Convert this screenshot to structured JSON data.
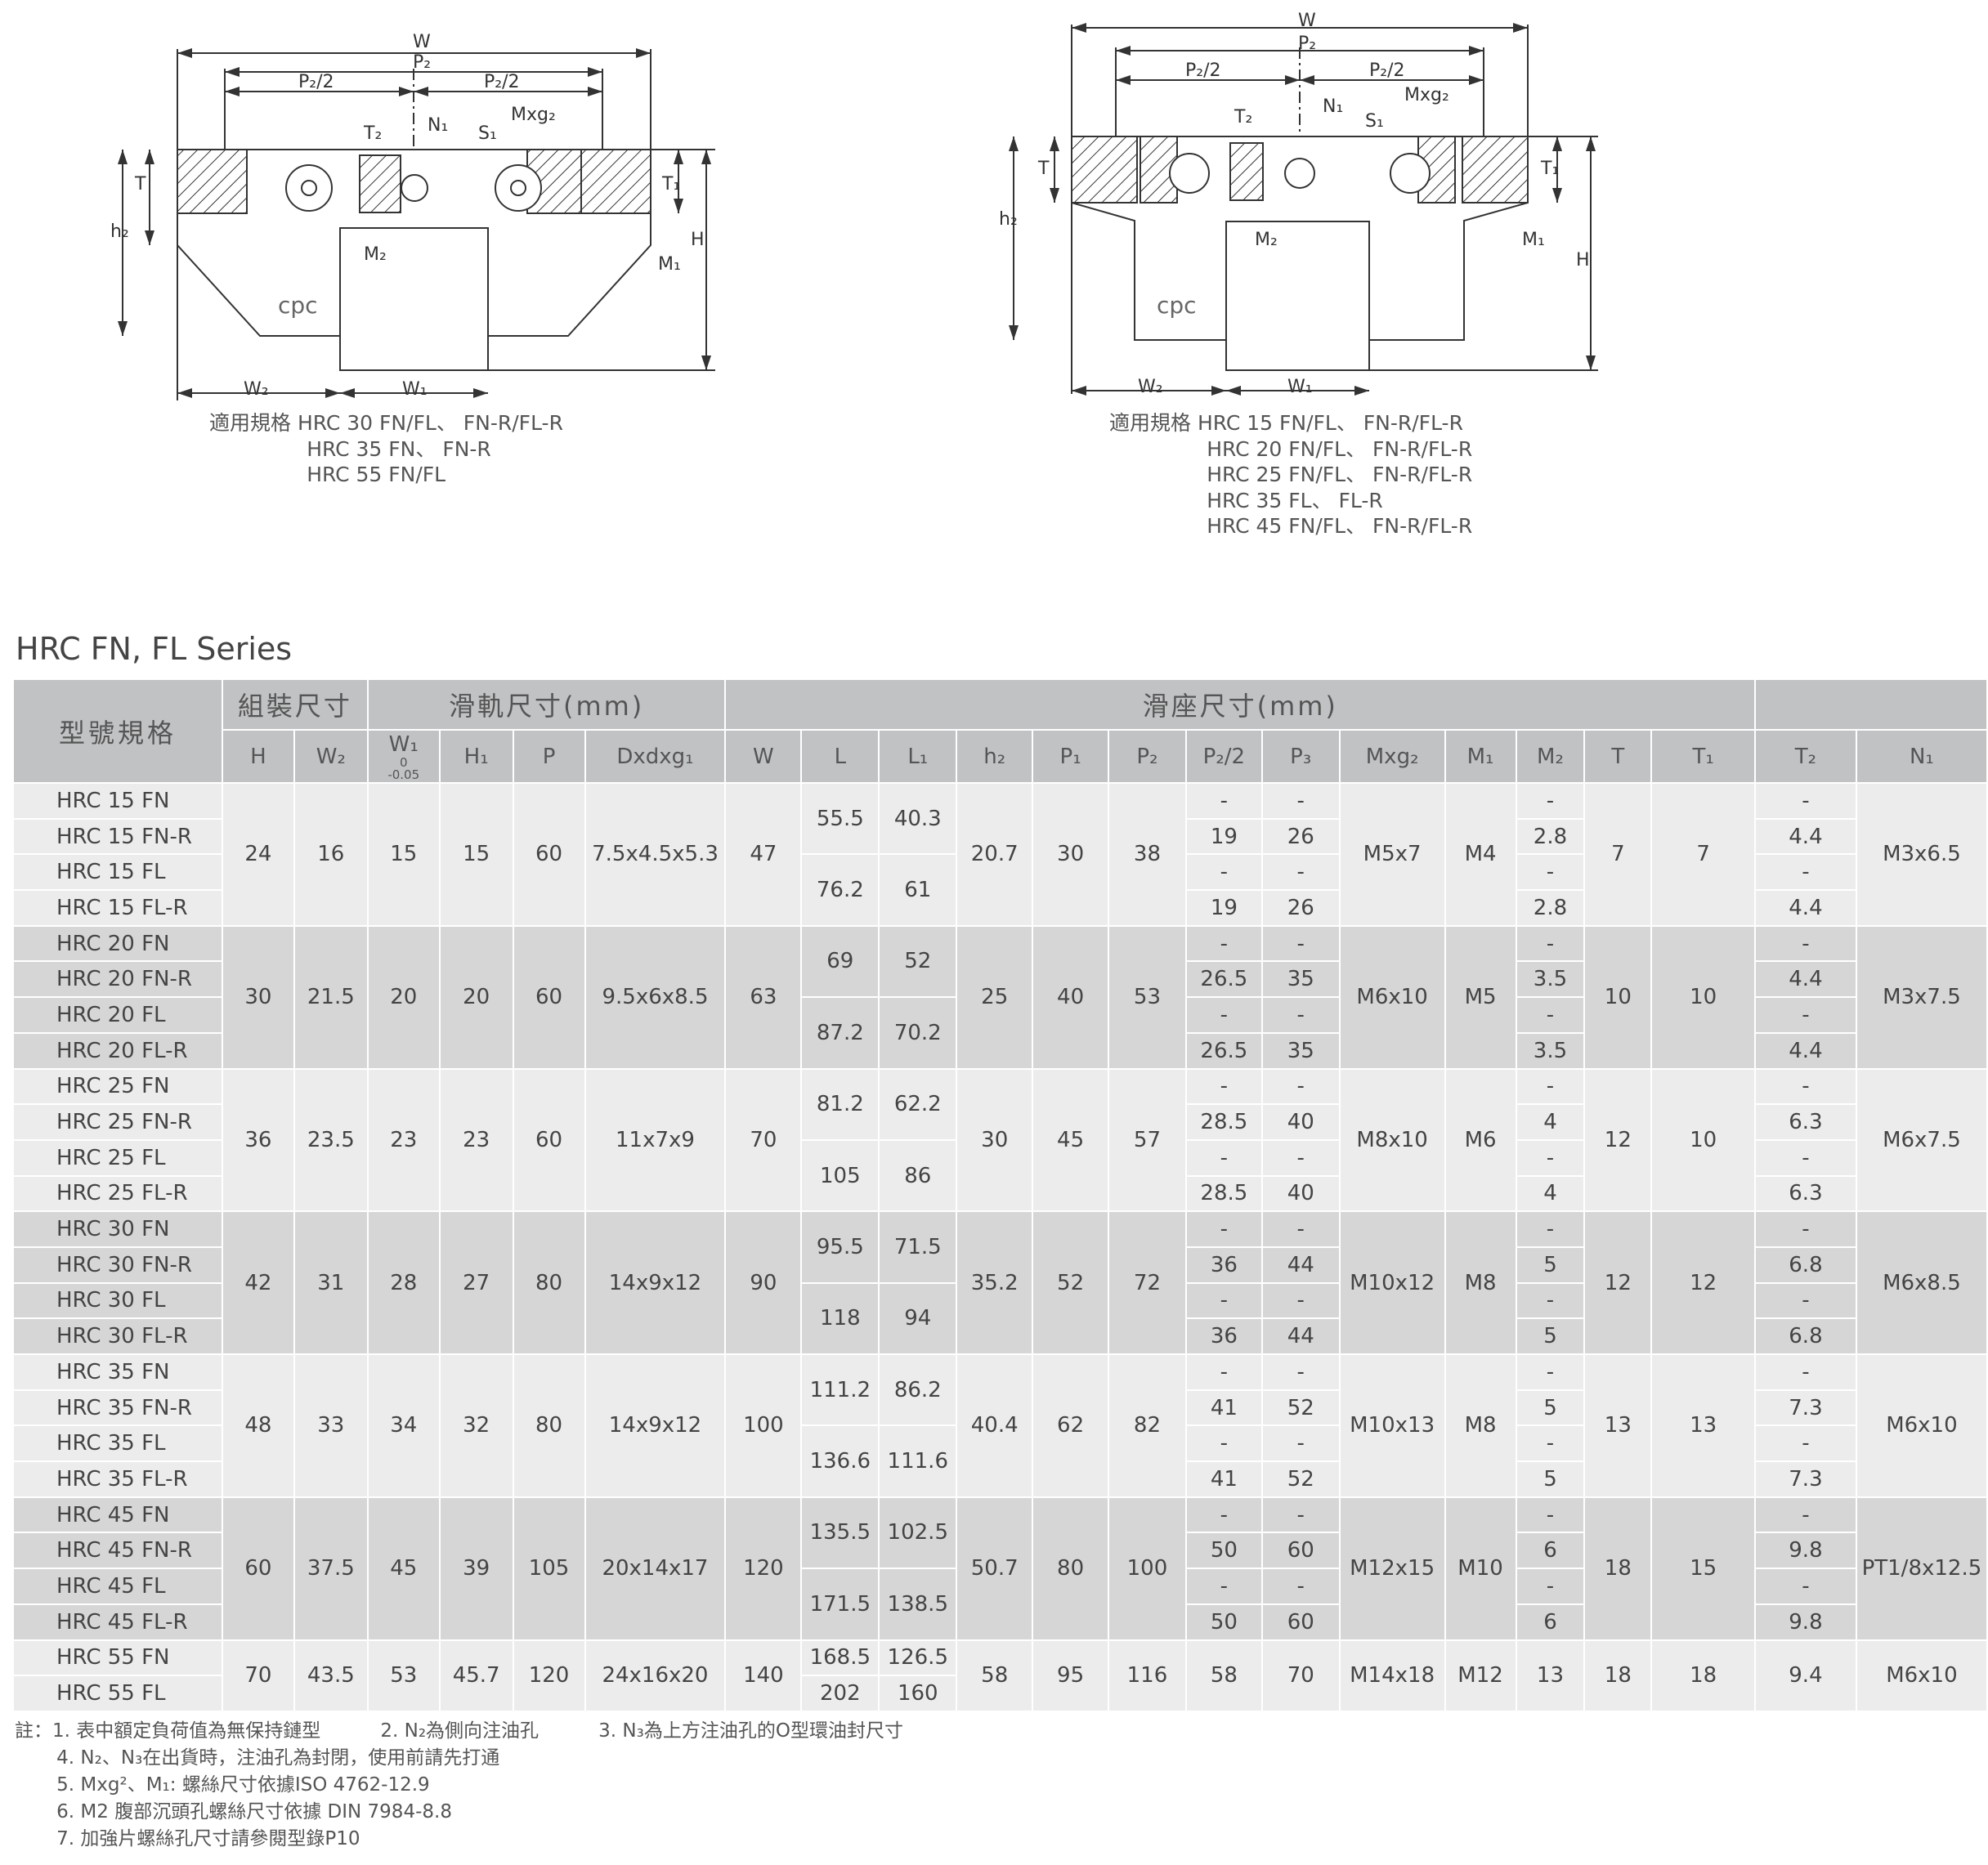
{
  "drawing_left": {
    "labels": {
      "W": "W",
      "P2": "P₂",
      "P2_half_l": "P₂/2",
      "P2_half_r": "P₂/2",
      "T2": "T₂",
      "N1": "N₁",
      "S1": "S₁",
      "Mxg2": "Mxg₂",
      "T": "T",
      "T1": "T₁",
      "h2": "h₂",
      "H": "H",
      "M2": "M₂",
      "M1": "M₁",
      "W2": "W₂",
      "W1": "W₁"
    },
    "logo": "cpc",
    "caption": "適用規格 HRC 30 FN/FL、 FN-R/FL-R\n               HRC 35 FN、 FN-R\n               HRC 55 FN/FL"
  },
  "drawing_right": {
    "labels": {
      "W": "W",
      "P2": "P₂",
      "P2_half_l": "P₂/2",
      "P2_half_r": "P₂/2",
      "T2": "T₂",
      "N1": "N₁",
      "S1": "S₁",
      "Mxg2": "Mxg₂",
      "T": "T",
      "T1": "T₁",
      "h2": "h₂",
      "H": "H",
      "M2": "M₂",
      "M1": "M₁",
      "W2": "W₂",
      "W1": "W₁"
    },
    "logo": "cpc",
    "caption": "適用規格 HRC 15 FN/FL、 FN-R/FL-R\n               HRC 20 FN/FL、 FN-R/FL-R\n               HRC 25 FN/FL、 FN-R/FL-R\n               HRC 35 FL、 FL-R\n               HRC 45 FN/FL、 FN-R/FL-R"
  },
  "series_title": "HRC FN, FL Series",
  "table": {
    "header_groups": {
      "model": "型號規格",
      "assembly": "組裝尺寸",
      "rail": "滑軌尺寸(mm)",
      "block": "滑座尺寸(mm)"
    },
    "columns": [
      "H",
      "W₂",
      "W₁",
      "H₁",
      "P",
      "Dxdxg₁",
      "W",
      "L",
      "L₁",
      "h₂",
      "P₁",
      "P₂",
      "P₂/2",
      "P₃",
      "Mxg₂",
      "M₁",
      "M₂",
      "T",
      "T₁",
      "T₂",
      "N₁"
    ],
    "w1_tolerance": {
      "upper": "0",
      "lower": "-0.05"
    },
    "groups": [
      {
        "models": [
          "HRC 15 FN",
          "HRC 15 FN-R",
          "HRC 15 FL",
          "HRC 15 FL-R"
        ],
        "H": "24",
        "W2": "16",
        "W1": "15",
        "H1": "15",
        "P": "60",
        "D": "7.5x4.5x5.3",
        "W": "47",
        "L": [
          "55.5",
          "76.2"
        ],
        "L1": [
          "40.3",
          "61"
        ],
        "h2": "20.7",
        "P1": "30",
        "P2": "38",
        "P2h": [
          "-",
          "19",
          "-",
          "19"
        ],
        "P3": [
          "-",
          "26",
          "-",
          "26"
        ],
        "Mxg2": "M5x7",
        "M1": "M4",
        "M2": [
          "-",
          "2.8",
          "-",
          "2.8"
        ],
        "T": "7",
        "T1": "7",
        "T2": [
          "-",
          "4.4",
          "-",
          "4.4"
        ],
        "N1": "M3x6.5"
      },
      {
        "models": [
          "HRC 20 FN",
          "HRC 20 FN-R",
          "HRC 20 FL",
          "HRC 20 FL-R"
        ],
        "H": "30",
        "W2": "21.5",
        "W1": "20",
        "H1": "20",
        "P": "60",
        "D": "9.5x6x8.5",
        "W": "63",
        "L": [
          "69",
          "87.2"
        ],
        "L1": [
          "52",
          "70.2"
        ],
        "h2": "25",
        "P1": "40",
        "P2": "53",
        "P2h": [
          "-",
          "26.5",
          "-",
          "26.5"
        ],
        "P3": [
          "-",
          "35",
          "-",
          "35"
        ],
        "Mxg2": "M6x10",
        "M1": "M5",
        "M2": [
          "-",
          "3.5",
          "-",
          "3.5"
        ],
        "T": "10",
        "T1": "10",
        "T2": [
          "-",
          "4.4",
          "-",
          "4.4"
        ],
        "N1": "M3x7.5"
      },
      {
        "models": [
          "HRC 25 FN",
          "HRC 25 FN-R",
          "HRC 25 FL",
          "HRC 25 FL-R"
        ],
        "H": "36",
        "W2": "23.5",
        "W1": "23",
        "H1": "23",
        "P": "60",
        "D": "11x7x9",
        "W": "70",
        "L": [
          "81.2",
          "105"
        ],
        "L1": [
          "62.2",
          "86"
        ],
        "h2": "30",
        "P1": "45",
        "P2": "57",
        "P2h": [
          "-",
          "28.5",
          "-",
          "28.5"
        ],
        "P3": [
          "-",
          "40",
          "-",
          "40"
        ],
        "Mxg2": "M8x10",
        "M1": "M6",
        "M2": [
          "-",
          "4",
          "-",
          "4"
        ],
        "T": "12",
        "T1": "10",
        "T2": [
          "-",
          "6.3",
          "-",
          "6.3"
        ],
        "N1": "M6x7.5"
      },
      {
        "models": [
          "HRC 30 FN",
          "HRC 30 FN-R",
          "HRC 30 FL",
          "HRC 30 FL-R"
        ],
        "H": "42",
        "W2": "31",
        "W1": "28",
        "H1": "27",
        "P": "80",
        "D": "14x9x12",
        "W": "90",
        "L": [
          "95.5",
          "118"
        ],
        "L1": [
          "71.5",
          "94"
        ],
        "h2": "35.2",
        "P1": "52",
        "P2": "72",
        "P2h": [
          "-",
          "36",
          "-",
          "36"
        ],
        "P3": [
          "-",
          "44",
          "-",
          "44"
        ],
        "Mxg2": "M10x12",
        "M1": "M8",
        "M2": [
          "-",
          "5",
          "-",
          "5"
        ],
        "T": "12",
        "T1": "12",
        "T2": [
          "-",
          "6.8",
          "-",
          "6.8"
        ],
        "N1": "M6x8.5"
      },
      {
        "models": [
          "HRC 35 FN",
          "HRC 35 FN-R",
          "HRC 35 FL",
          "HRC 35 FL-R"
        ],
        "H": "48",
        "W2": "33",
        "W1": "34",
        "H1": "32",
        "P": "80",
        "D": "14x9x12",
        "W": "100",
        "L": [
          "111.2",
          "136.6"
        ],
        "L1": [
          "86.2",
          "111.6"
        ],
        "h2": "40.4",
        "P1": "62",
        "P2": "82",
        "P2h": [
          "-",
          "41",
          "-",
          "41"
        ],
        "P3": [
          "-",
          "52",
          "-",
          "52"
        ],
        "Mxg2": "M10x13",
        "M1": "M8",
        "M2": [
          "-",
          "5",
          "-",
          "5"
        ],
        "T": "13",
        "T1": "13",
        "T2": [
          "-",
          "7.3",
          "-",
          "7.3"
        ],
        "N1": "M6x10"
      },
      {
        "models": [
          "HRC 45 FN",
          "HRC 45 FN-R",
          "HRC 45 FL",
          "HRC 45 FL-R"
        ],
        "H": "60",
        "W2": "37.5",
        "W1": "45",
        "H1": "39",
        "P": "105",
        "D": "20x14x17",
        "W": "120",
        "L": [
          "135.5",
          "171.5"
        ],
        "L1": [
          "102.5",
          "138.5"
        ],
        "h2": "50.7",
        "P1": "80",
        "P2": "100",
        "P2h": [
          "-",
          "50",
          "-",
          "50"
        ],
        "P3": [
          "-",
          "60",
          "-",
          "60"
        ],
        "Mxg2": "M12x15",
        "M1": "M10",
        "M2": [
          "-",
          "6",
          "-",
          "6"
        ],
        "T": "18",
        "T1": "15",
        "T2": [
          "-",
          "9.8",
          "-",
          "9.8"
        ],
        "N1": "PT1/8x12.5"
      },
      {
        "models": [
          "HRC 55 FN",
          "HRC 55 FL"
        ],
        "H": "70",
        "W2": "43.5",
        "W1": "53",
        "H1": "45.7",
        "P": "120",
        "D": "24x16x20",
        "W": "140",
        "L": [
          "168.5",
          "202"
        ],
        "L1": [
          "126.5",
          "160"
        ],
        "h2": "58",
        "P1": "95",
        "P2": "116",
        "P2h": [
          "58"
        ],
        "P3": [
          "70"
        ],
        "Mxg2": "M14x18",
        "M1": "M12",
        "M2": [
          "13"
        ],
        "T": "18",
        "T1": "18",
        "T2": [
          "9.4"
        ],
        "N1": "M6x10"
      }
    ]
  },
  "notes": [
    "註：1. 表中額定負荷值為無保持鏈型          2. N₂為側向注油孔          3. N₃為上方注油孔的O型環油封尺寸",
    "       4. N₂、N₃在出貨時，注油孔為封閉，使用前請先打通",
    "       5. Mxg²、M₁: 螺絲尺寸依據ISO 4762-12.9",
    "       6. M2 腹部沉頭孔螺絲尺寸依據 DIN 7984-8.8",
    "       7. 加強片螺絲孔尺寸請參閱型錄P10"
  ],
  "colors": {
    "header_bg": "#c1c2c4",
    "row_light": "#ececec",
    "row_dark": "#d6d6d6",
    "grid": "#ffffff"
  }
}
